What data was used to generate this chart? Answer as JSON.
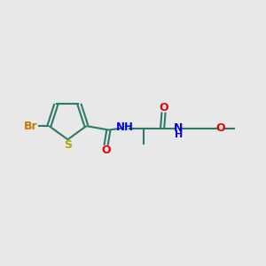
{
  "bg_color": "#e8e8e8",
  "bond_color": "#2d7a6a",
  "N_color": "#0000ee",
  "O_color": "#ee0000",
  "S_color": "#aaaa00",
  "Br_color": "#cc7700",
  "line_width": 1.5,
  "font_size": 9,
  "fig_width": 3.0,
  "fig_height": 3.0,
  "xlim": [
    0,
    10
  ],
  "ylim": [
    0,
    10
  ]
}
